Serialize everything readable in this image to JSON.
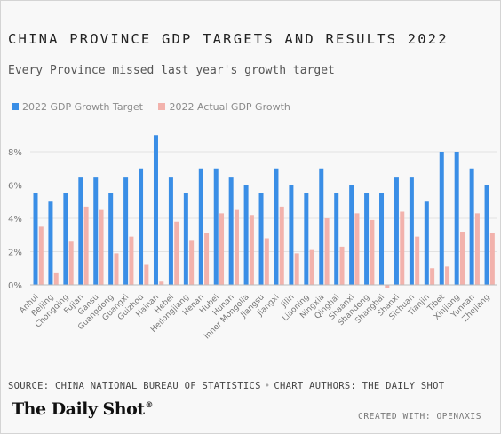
{
  "title": "CHINA PROVINCE GDP TARGETS AND RESULTS 2022",
  "subtitle": "Every Province missed last year's growth target",
  "colors": {
    "target": "#3a8ee6",
    "actual": "#f2b2ac",
    "grid": "#e2e2e2",
    "axis": "#bdbdbd"
  },
  "footer": {
    "source": "SOURCE: CHINA NATIONAL BUREAU OF STATISTICS",
    "separator": "•",
    "authors": "CHART AUTHORS: THE DAILY SHOT",
    "logo": "The Daily Shot",
    "logo_mark": "®",
    "created_with": "CREATED WITH: OPENΛXIS"
  },
  "chart_data": {
    "type": "bar",
    "title": "CHINA PROVINCE GDP TARGETS AND RESULTS 2022",
    "subtitle": "Every Province missed last year's growth target",
    "xlabel": "",
    "ylabel": "",
    "ylim": [
      0,
      9
    ],
    "yticks": [
      0,
      2,
      4,
      6,
      8
    ],
    "ytick_labels": [
      "0%",
      "2%",
      "4%",
      "6%",
      "8%"
    ],
    "legend_position": "top-left",
    "grid": true,
    "categories": [
      "Anhui",
      "Beijing",
      "Chongqing",
      "Fujian",
      "Gansu",
      "Guangdong",
      "Guangxi",
      "Guizhou",
      "Hainan",
      "Hebei",
      "Heilongjiang",
      "Henan",
      "Hubei",
      "Hunan",
      "Inner Mongolia",
      "Jiangsu",
      "Jiangxi",
      "Jilin",
      "Liaoning",
      "Ningxia",
      "Qinghai",
      "Shaanxi",
      "Shandong",
      "Shanghai",
      "Shanxi",
      "Sichuan",
      "Tianjin",
      "Tibet",
      "Xinjiang",
      "Yunnan",
      "Zhejiang"
    ],
    "series": [
      {
        "name": "2022 GDP Growth Target",
        "values": [
          5.5,
          5.0,
          5.5,
          6.5,
          6.5,
          5.5,
          6.5,
          7.0,
          9.0,
          6.5,
          5.5,
          7.0,
          7.0,
          6.5,
          6.0,
          5.5,
          7.0,
          6.0,
          5.5,
          7.0,
          5.5,
          6.0,
          5.5,
          5.5,
          6.5,
          6.5,
          5.0,
          8.0,
          8.0,
          7.0,
          6.0
        ]
      },
      {
        "name": "2022 Actual GDP Growth",
        "values": [
          3.5,
          0.7,
          2.6,
          4.7,
          4.5,
          1.9,
          2.9,
          1.2,
          0.2,
          3.8,
          2.7,
          3.1,
          4.3,
          4.5,
          4.2,
          2.8,
          4.7,
          1.9,
          2.1,
          4.0,
          2.3,
          4.3,
          3.9,
          -0.2,
          4.4,
          2.9,
          1.0,
          1.1,
          3.2,
          4.3,
          3.1
        ]
      }
    ]
  }
}
